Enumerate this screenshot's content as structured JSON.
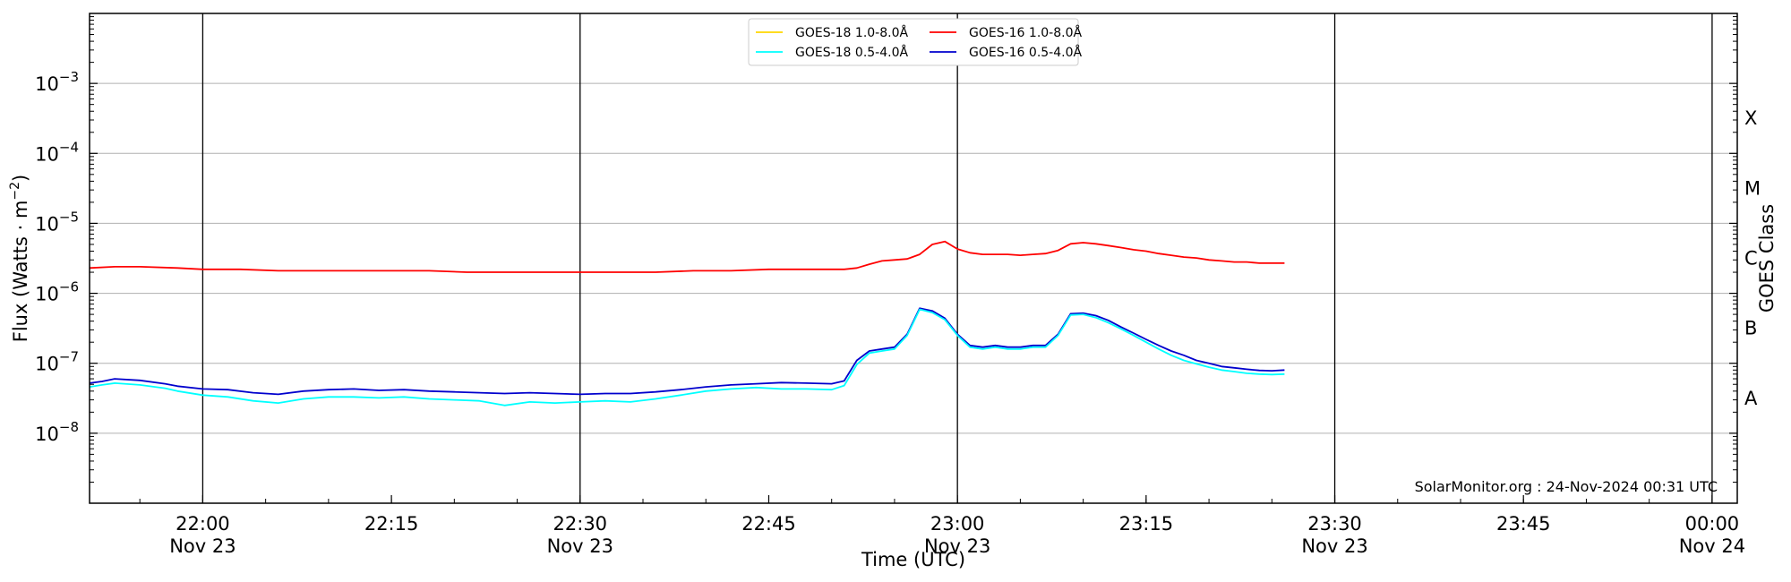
{
  "chart_data": {
    "type": "line",
    "xlabel": "Time (UTC)",
    "ylabel": "Flux (Watts · m",
    "ylabel_sup": "−2",
    "ylabel_close": ")",
    "y2label": "GOES Class",
    "yscale": "log",
    "xlim": [
      "2024-11-23 21:51",
      "2024-11-24 00:02"
    ],
    "ylim": [
      1e-09,
      0.01
    ],
    "x_ticks": [
      {
        "t": "2024-11-23 22:00",
        "line1": "22:00",
        "line2": "Nov 23"
      },
      {
        "t": "2024-11-23 22:15",
        "line1": "22:15",
        "line2": ""
      },
      {
        "t": "2024-11-23 22:30",
        "line1": "22:30",
        "line2": "Nov 23"
      },
      {
        "t": "2024-11-23 22:45",
        "line1": "22:45",
        "line2": ""
      },
      {
        "t": "2024-11-23 23:00",
        "line1": "23:00",
        "line2": "Nov 23"
      },
      {
        "t": "2024-11-23 23:15",
        "line1": "23:15",
        "line2": ""
      },
      {
        "t": "2024-11-23 23:30",
        "line1": "23:30",
        "line2": "Nov 23"
      },
      {
        "t": "2024-11-23 23:45",
        "line1": "23:45",
        "line2": ""
      },
      {
        "t": "2024-11-24 00:00",
        "line1": "00:00",
        "line2": "Nov 24"
      }
    ],
    "vertical_lines": [
      "2024-11-23 22:00",
      "2024-11-23 22:30",
      "2024-11-23 23:00",
      "2024-11-23 23:30",
      "2024-11-24 00:00"
    ],
    "y_ticks": [
      {
        "value": 1e-08,
        "exp": "−8"
      },
      {
        "value": 1e-07,
        "exp": "−7"
      },
      {
        "value": 1e-06,
        "exp": "−6"
      },
      {
        "value": 1e-05,
        "exp": "−5"
      },
      {
        "value": 0.0001,
        "exp": "−4"
      },
      {
        "value": 0.001,
        "exp": "−3"
      }
    ],
    "y_tick_base": "10",
    "goes_classes": [
      {
        "label": "A",
        "value": 3.16e-08
      },
      {
        "label": "B",
        "value": 3.16e-07
      },
      {
        "label": "C",
        "value": 3.16e-06
      },
      {
        "label": "M",
        "value": 3.16e-05
      },
      {
        "label": "X",
        "value": 0.000316
      }
    ],
    "grid": "horizontal at decades",
    "legend": {
      "placement": "top-center",
      "entries": [
        {
          "name": "GOES-18 1.0-8.0Å",
          "color": "#ffd700"
        },
        {
          "name": "GOES-18 0.5-4.0Å",
          "color": "#00ffff"
        },
        {
          "name": "GOES-16 1.0-8.0Å",
          "color": "#ff0000"
        },
        {
          "name": "GOES-16 0.5-4.0Å",
          "color": "#0000cd"
        }
      ]
    },
    "annotation": "SolarMonitor.org : 24-Nov-2024 00:31 UTC",
    "series": [
      {
        "name": "GOES-16 1.0-8.0Å",
        "color": "#ff0000",
        "x": [
          "2024-11-23 21:51",
          "2024-11-23 21:53",
          "2024-11-23 21:55",
          "2024-11-23 21:58",
          "2024-11-23 22:00",
          "2024-11-23 22:03",
          "2024-11-23 22:06",
          "2024-11-23 22:09",
          "2024-11-23 22:12",
          "2024-11-23 22:15",
          "2024-11-23 22:18",
          "2024-11-23 22:21",
          "2024-11-23 22:24",
          "2024-11-23 22:27",
          "2024-11-23 22:30",
          "2024-11-23 22:33",
          "2024-11-23 22:36",
          "2024-11-23 22:39",
          "2024-11-23 22:42",
          "2024-11-23 22:45",
          "2024-11-23 22:48",
          "2024-11-23 22:51",
          "2024-11-23 22:52",
          "2024-11-23 22:53",
          "2024-11-23 22:54",
          "2024-11-23 22:55",
          "2024-11-23 22:56",
          "2024-11-23 22:57",
          "2024-11-23 22:58",
          "2024-11-23 22:59",
          "2024-11-23 23:00",
          "2024-11-23 23:01",
          "2024-11-23 23:02",
          "2024-11-23 23:03",
          "2024-11-23 23:04",
          "2024-11-23 23:05",
          "2024-11-23 23:06",
          "2024-11-23 23:07",
          "2024-11-23 23:08",
          "2024-11-23 23:09",
          "2024-11-23 23:10",
          "2024-11-23 23:11",
          "2024-11-23 23:12",
          "2024-11-23 23:13",
          "2024-11-23 23:14",
          "2024-11-23 23:15",
          "2024-11-23 23:16",
          "2024-11-23 23:17",
          "2024-11-23 23:18",
          "2024-11-23 23:19",
          "2024-11-23 23:20",
          "2024-11-23 23:21",
          "2024-11-23 23:22",
          "2024-11-23 23:23",
          "2024-11-23 23:24",
          "2024-11-23 23:25",
          "2024-11-23 23:26"
        ],
        "y": [
          2.3e-06,
          2.4e-06,
          2.4e-06,
          2.3e-06,
          2.2e-06,
          2.2e-06,
          2.1e-06,
          2.1e-06,
          2.1e-06,
          2.1e-06,
          2.1e-06,
          2e-06,
          2e-06,
          2e-06,
          2e-06,
          2e-06,
          2e-06,
          2.1e-06,
          2.1e-06,
          2.2e-06,
          2.2e-06,
          2.2e-06,
          2.3e-06,
          2.6e-06,
          2.9e-06,
          3e-06,
          3.1e-06,
          3.6e-06,
          5e-06,
          5.5e-06,
          4.3e-06,
          3.8e-06,
          3.6e-06,
          3.6e-06,
          3.6e-06,
          3.5e-06,
          3.6e-06,
          3.7e-06,
          4.1e-06,
          5.1e-06,
          5.3e-06,
          5.1e-06,
          4.8e-06,
          4.5e-06,
          4.2e-06,
          4e-06,
          3.7e-06,
          3.5e-06,
          3.3e-06,
          3.2e-06,
          3e-06,
          2.9e-06,
          2.8e-06,
          2.8e-06,
          2.7e-06,
          2.7e-06,
          2.7e-06
        ]
      },
      {
        "name": "GOES-16 0.5-4.0Å",
        "color": "#0000cd",
        "x": [
          "2024-11-23 21:51",
          "2024-11-23 21:52",
          "2024-11-23 21:53",
          "2024-11-23 21:55",
          "2024-11-23 21:57",
          "2024-11-23 21:58",
          "2024-11-23 22:00",
          "2024-11-23 22:02",
          "2024-11-23 22:04",
          "2024-11-23 22:06",
          "2024-11-23 22:08",
          "2024-11-23 22:10",
          "2024-11-23 22:12",
          "2024-11-23 22:14",
          "2024-11-23 22:16",
          "2024-11-23 22:18",
          "2024-11-23 22:20",
          "2024-11-23 22:22",
          "2024-11-23 22:24",
          "2024-11-23 22:26",
          "2024-11-23 22:28",
          "2024-11-23 22:30",
          "2024-11-23 22:32",
          "2024-11-23 22:34",
          "2024-11-23 22:36",
          "2024-11-23 22:38",
          "2024-11-23 22:40",
          "2024-11-23 22:42",
          "2024-11-23 22:44",
          "2024-11-23 22:46",
          "2024-11-23 22:48",
          "2024-11-23 22:50",
          "2024-11-23 22:51",
          "2024-11-23 22:52",
          "2024-11-23 22:53",
          "2024-11-23 22:54",
          "2024-11-23 22:55",
          "2024-11-23 22:56",
          "2024-11-23 22:57",
          "2024-11-23 22:58",
          "2024-11-23 22:59",
          "2024-11-23 23:00",
          "2024-11-23 23:01",
          "2024-11-23 23:02",
          "2024-11-23 23:03",
          "2024-11-23 23:04",
          "2024-11-23 23:05",
          "2024-11-23 23:06",
          "2024-11-23 23:07",
          "2024-11-23 23:08",
          "2024-11-23 23:09",
          "2024-11-23 23:10",
          "2024-11-23 23:11",
          "2024-11-23 23:12",
          "2024-11-23 23:13",
          "2024-11-23 23:14",
          "2024-11-23 23:15",
          "2024-11-23 23:16",
          "2024-11-23 23:17",
          "2024-11-23 23:18",
          "2024-11-23 23:19",
          "2024-11-23 23:20",
          "2024-11-23 23:21",
          "2024-11-23 23:22",
          "2024-11-23 23:23",
          "2024-11-23 23:24",
          "2024-11-23 23:25",
          "2024-11-23 23:26"
        ],
        "y": [
          5.2e-08,
          5.5e-08,
          6e-08,
          5.7e-08,
          5.1e-08,
          4.7e-08,
          4.3e-08,
          4.2e-08,
          3.8e-08,
          3.6e-08,
          4e-08,
          4.2e-08,
          4.3e-08,
          4.1e-08,
          4.2e-08,
          4e-08,
          3.9e-08,
          3.8e-08,
          3.7e-08,
          3.8e-08,
          3.7e-08,
          3.6e-08,
          3.7e-08,
          3.7e-08,
          3.9e-08,
          4.2e-08,
          4.6e-08,
          4.9e-08,
          5.1e-08,
          5.3e-08,
          5.2e-08,
          5.1e-08,
          5.6e-08,
          1.1e-07,
          1.5e-07,
          1.6e-07,
          1.7e-07,
          2.6e-07,
          6.1e-07,
          5.6e-07,
          4.4e-07,
          2.6e-07,
          1.8e-07,
          1.7e-07,
          1.8e-07,
          1.7e-07,
          1.7e-07,
          1.8e-07,
          1.8e-07,
          2.6e-07,
          5.1e-07,
          5.2e-07,
          4.8e-07,
          4.1e-07,
          3.3e-07,
          2.7e-07,
          2.2e-07,
          1.8e-07,
          1.5e-07,
          1.3e-07,
          1.1e-07,
          1e-07,
          9e-08,
          8.6e-08,
          8.2e-08,
          7.9e-08,
          7.8e-08,
          8e-08
        ]
      },
      {
        "name": "GOES-18 0.5-4.0Å",
        "color": "#00ffff",
        "x": [
          "2024-11-23 21:51",
          "2024-11-23 21:52",
          "2024-11-23 21:53",
          "2024-11-23 21:55",
          "2024-11-23 21:57",
          "2024-11-23 21:58",
          "2024-11-23 22:00",
          "2024-11-23 22:02",
          "2024-11-23 22:04",
          "2024-11-23 22:06",
          "2024-11-23 22:08",
          "2024-11-23 22:10",
          "2024-11-23 22:12",
          "2024-11-23 22:14",
          "2024-11-23 22:16",
          "2024-11-23 22:18",
          "2024-11-23 22:20",
          "2024-11-23 22:22",
          "2024-11-23 22:24",
          "2024-11-23 22:26",
          "2024-11-23 22:28",
          "2024-11-23 22:30",
          "2024-11-23 22:32",
          "2024-11-23 22:34",
          "2024-11-23 22:36",
          "2024-11-23 22:38",
          "2024-11-23 22:40",
          "2024-11-23 22:42",
          "2024-11-23 22:44",
          "2024-11-23 22:46",
          "2024-11-23 22:48",
          "2024-11-23 22:50",
          "2024-11-23 22:51",
          "2024-11-23 22:52",
          "2024-11-23 22:53",
          "2024-11-23 22:54",
          "2024-11-23 22:55",
          "2024-11-23 22:56",
          "2024-11-23 22:57",
          "2024-11-23 22:58",
          "2024-11-23 22:59",
          "2024-11-23 23:00",
          "2024-11-23 23:01",
          "2024-11-23 23:02",
          "2024-11-23 23:03",
          "2024-11-23 23:04",
          "2024-11-23 23:05",
          "2024-11-23 23:06",
          "2024-11-23 23:07",
          "2024-11-23 23:08",
          "2024-11-23 23:09",
          "2024-11-23 23:10",
          "2024-11-23 23:11",
          "2024-11-23 23:12",
          "2024-11-23 23:13",
          "2024-11-23 23:14",
          "2024-11-23 23:15",
          "2024-11-23 23:16",
          "2024-11-23 23:17",
          "2024-11-23 23:18",
          "2024-11-23 23:19",
          "2024-11-23 23:20",
          "2024-11-23 23:21",
          "2024-11-23 23:22",
          "2024-11-23 23:23",
          "2024-11-23 23:24",
          "2024-11-23 23:25",
          "2024-11-23 23:26"
        ],
        "y": [
          4.6e-08,
          4.9e-08,
          5.2e-08,
          4.9e-08,
          4.4e-08,
          4e-08,
          3.5e-08,
          3.3e-08,
          2.9e-08,
          2.7e-08,
          3.1e-08,
          3.3e-08,
          3.3e-08,
          3.2e-08,
          3.3e-08,
          3.1e-08,
          3e-08,
          2.9e-08,
          2.5e-08,
          2.8e-08,
          2.7e-08,
          2.8e-08,
          2.9e-08,
          2.8e-08,
          3.1e-08,
          3.5e-08,
          4e-08,
          4.3e-08,
          4.5e-08,
          4.3e-08,
          4.3e-08,
          4.2e-08,
          4.8e-08,
          9.6e-08,
          1.4e-07,
          1.5e-07,
          1.6e-07,
          2.5e-07,
          5.9e-07,
          5.3e-07,
          4.2e-07,
          2.5e-07,
          1.7e-07,
          1.6e-07,
          1.7e-07,
          1.6e-07,
          1.6e-07,
          1.7e-07,
          1.7e-07,
          2.5e-07,
          4.9e-07,
          5e-07,
          4.5e-07,
          3.8e-07,
          3.1e-07,
          2.5e-07,
          2e-07,
          1.6e-07,
          1.3e-07,
          1.1e-07,
          9.8e-08,
          8.8e-08,
          8e-08,
          7.6e-08,
          7.2e-08,
          7e-08,
          6.9e-08,
          7e-08
        ]
      },
      {
        "name": "GOES-18 1.0-8.0Å",
        "color": "#ffd700",
        "x": [],
        "y": []
      }
    ]
  }
}
